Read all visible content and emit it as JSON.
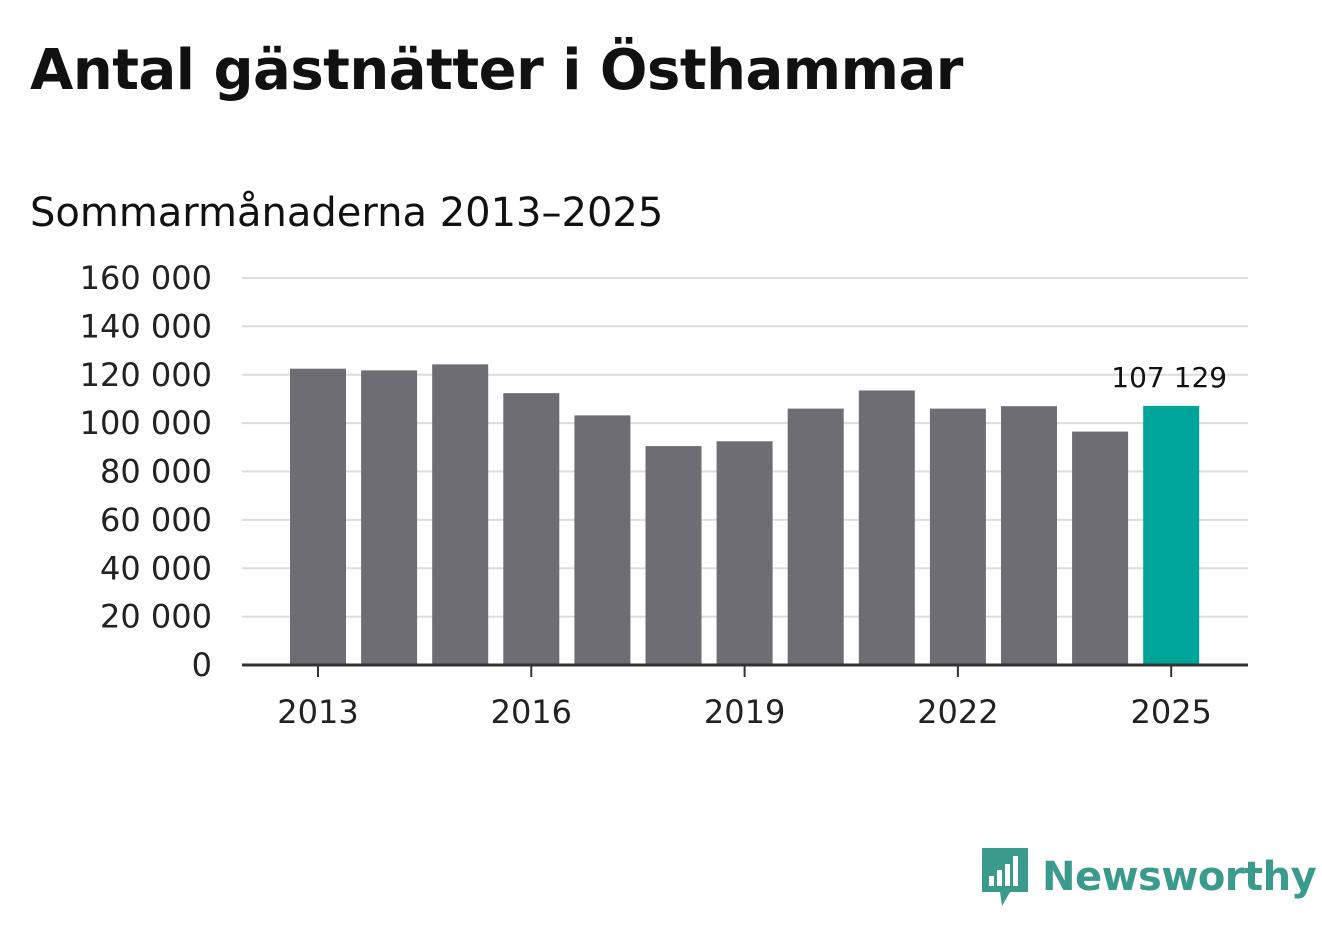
{
  "chart_data": {
    "type": "bar",
    "title": "Antal gästnätter i Östhammar",
    "subtitle": "Sommarmånaderna 2013–2025",
    "categories": [
      "2013",
      "2014",
      "2015",
      "2016",
      "2017",
      "2018",
      "2019",
      "2020",
      "2021",
      "2022",
      "2023",
      "2024",
      "2025"
    ],
    "values": [
      122500,
      121800,
      124300,
      112400,
      103200,
      90500,
      92500,
      106000,
      113500,
      106000,
      107000,
      96500,
      107129
    ],
    "highlight_index": 12,
    "highlight_label": "107 129",
    "xticks": [
      "2013",
      "2016",
      "2019",
      "2022",
      "2025"
    ],
    "yticks": [
      "0",
      "20 000",
      "40 000",
      "60 000",
      "80 000",
      "100 000",
      "120 000",
      "140 000",
      "160 000"
    ],
    "ylim": [
      0,
      160000
    ],
    "xlabel": "",
    "ylabel": "",
    "grid": true,
    "colors": {
      "bar": "#6d6d73",
      "highlight": "#00a59a",
      "grid": "#dcdcdc",
      "axis": "#333333"
    }
  },
  "logo": {
    "text": "Newsworthy",
    "icon": "newsworthy-logo-icon"
  }
}
